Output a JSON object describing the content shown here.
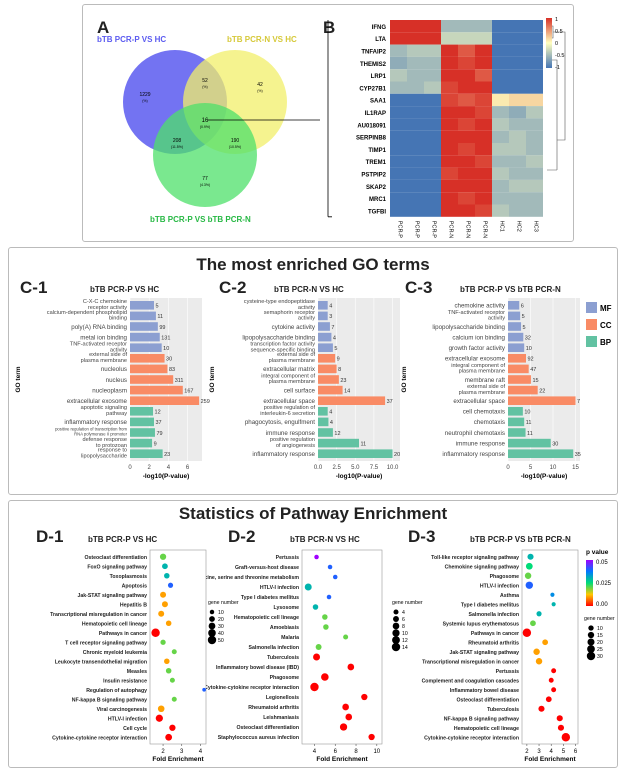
{
  "panelA": {
    "label": "A",
    "set1": "bTB PCR-P VS HC",
    "set2": "bTB PCR-N VS HC",
    "set3": "bTB PCR-P VS bTB PCR-N",
    "regions": [
      {
        "count": "1229",
        "pct": "(%)"
      },
      {
        "count": "52",
        "pct": "(%)"
      },
      {
        "count": "42",
        "pct": "(%)"
      },
      {
        "count": "16",
        "pct": "(0.9%)"
      },
      {
        "count": "208",
        "pct": "(11.5%)"
      },
      {
        "count": "190",
        "pct": "(10.5%)"
      },
      {
        "count": "77",
        "pct": "(4.3%)"
      }
    ],
    "colors": {
      "set1": "#5b5bf0",
      "set2": "#f2ef6a",
      "set3": "#4ee06a"
    }
  },
  "panelB": {
    "label": "B",
    "genes": [
      "IFNG",
      "LTA",
      "TNFAIP2",
      "THEMIS2",
      "LRP1",
      "CYP27B1",
      "SAA1",
      "IL1RAP",
      "AU018091",
      "SERPINB8",
      "TIMP1",
      "TREM1",
      "PSTPIP2",
      "SKAP2",
      "MRC1",
      "TGFBI"
    ],
    "samples": [
      "PCR-P1",
      "PCR-P2",
      "PCR-P3",
      "PCR-N1",
      "PCR-N2",
      "PCR-N3",
      "HC1",
      "HC2",
      "HC3"
    ],
    "legend_ticks": [
      "1",
      "0.5",
      "0",
      "-0.5",
      "-1"
    ],
    "values": [
      [
        1,
        1,
        1,
        -0.5,
        -0.5,
        -0.5,
        -1,
        -1,
        -1
      ],
      [
        1,
        1,
        1,
        -0.3,
        -0.3,
        -0.3,
        -1,
        -1,
        -1
      ],
      [
        -0.5,
        -0.4,
        -0.4,
        1,
        0.8,
        1,
        -1,
        -1,
        -1
      ],
      [
        -0.6,
        -0.5,
        -0.5,
        1,
        0.9,
        1,
        -1,
        -1,
        -1
      ],
      [
        -0.4,
        -0.5,
        -0.5,
        1,
        1,
        0.8,
        -1,
        -1,
        -1
      ],
      [
        -0.5,
        -0.5,
        -0.4,
        0.9,
        1,
        1,
        -1,
        -1,
        -1
      ],
      [
        -1,
        -1,
        -1,
        0.9,
        0.8,
        0.9,
        0.1,
        0.2,
        0.2
      ],
      [
        -1,
        -1,
        -1,
        1,
        1,
        0.9,
        -0.5,
        -0.6,
        -0.4
      ],
      [
        -1,
        -1,
        -1,
        1,
        0.9,
        1,
        -0.4,
        -0.5,
        -0.5
      ],
      [
        -1,
        -1,
        -1,
        1,
        1,
        1,
        -0.5,
        -0.4,
        -0.5
      ],
      [
        -1,
        -1,
        -1,
        1,
        0.9,
        1,
        -0.4,
        -0.4,
        -0.5
      ],
      [
        -1,
        -1,
        -1,
        1,
        1,
        0.9,
        -0.5,
        -0.5,
        -0.4
      ],
      [
        -1,
        -1,
        -1,
        0.9,
        1,
        1,
        -0.4,
        -0.5,
        -0.5
      ],
      [
        -1,
        -1,
        -1,
        1,
        1,
        1,
        -0.5,
        -0.4,
        -0.4
      ],
      [
        -1,
        -1,
        -1,
        1,
        0.9,
        1,
        -0.5,
        -0.5,
        -0.5
      ],
      [
        -1,
        -1,
        -1,
        1,
        1,
        0.9,
        -0.4,
        -0.5,
        -0.5
      ]
    ]
  },
  "go_section": {
    "title": "The most enriched GO terms"
  },
  "pathway_section": {
    "title": "Statistics of Pathway Enrichment"
  },
  "chart_data": [
    {
      "id": "C-1",
      "type": "bar",
      "title": "bTB PCR-P VS HC",
      "xlabel": "-log10(P-value)",
      "ylabel": "GO term",
      "xticks": [
        "0",
        "2",
        "4",
        "6"
      ],
      "xlim": [
        0,
        7.5
      ],
      "legend": [
        "MF",
        "CC",
        "BP"
      ],
      "categories": [
        "C-X-C chemokine receptor activity",
        "calcium-dependent phospholipid binding",
        "poly(A) RNA binding",
        "metal ion binding",
        "TNF-activated receptor activity",
        "external side of plasma membrane",
        "nucleolus",
        "nucleus",
        "nucleoplasm",
        "extracellular exosome",
        "apoptotic signaling pathway",
        "inflammatory response",
        "positive regulation of transcription from RNA polymerase II promoter",
        "defense response to protozoan",
        "response to lipopolysaccharide"
      ],
      "values": [
        2.5,
        2.7,
        2.9,
        3.1,
        3.3,
        3.6,
        3.9,
        4.5,
        5.5,
        7.2,
        2.4,
        2.5,
        2.6,
        2.3,
        3.4
      ],
      "labels": [
        "5",
        "11",
        "99",
        "131",
        "10",
        "30",
        "83",
        "311",
        "167",
        "259",
        "12",
        "37",
        "79",
        "9",
        "23"
      ],
      "groups": [
        "MF",
        "MF",
        "MF",
        "MF",
        "MF",
        "CC",
        "CC",
        "CC",
        "CC",
        "CC",
        "BP",
        "BP",
        "BP",
        "BP",
        "BP"
      ]
    },
    {
      "id": "C-2",
      "type": "bar",
      "title": "bTB PCR-N VS HC",
      "xlabel": "-log10(P-value)",
      "ylabel": "GO term",
      "xticks": [
        "0.0",
        "2.5",
        "5.0",
        "7.5",
        "10.0"
      ],
      "xlim": [
        0,
        11
      ],
      "categories": [
        "cysteine-type endopeptidase activity",
        "semaphorin receptor activity",
        "cytokine activity",
        "lipopolysaccharide binding",
        "transcription factor activity sequence-specific binding",
        "external side of plasma membrane",
        "extracellular matrix",
        "integral component of plasma membrane",
        "cell surface",
        "extracellular space",
        "positive regulation of interleukin-6 secretion",
        "phagocytosis, engulfment",
        "immune response",
        "positive regulation of angiogenesis",
        "inflammatory response"
      ],
      "values": [
        1.3,
        1.3,
        1.6,
        1.8,
        2.0,
        2.3,
        2.5,
        2.8,
        3.3,
        9.0,
        1.3,
        1.4,
        2.0,
        5.5,
        10.0
      ],
      "labels": [
        "4",
        "3",
        "7",
        "4",
        "5",
        "9",
        "8",
        "23",
        "14",
        "37",
        "4",
        "4",
        "12",
        "11",
        "20"
      ],
      "groups": [
        "MF",
        "MF",
        "MF",
        "MF",
        "MF",
        "CC",
        "CC",
        "CC",
        "CC",
        "CC",
        "BP",
        "BP",
        "BP",
        "BP",
        "BP"
      ]
    },
    {
      "id": "C-3",
      "type": "bar",
      "title": "bTB PCR-P VS bTB PCR-N",
      "xlabel": "-log10(P-value)",
      "ylabel": "GO term",
      "xticks": [
        "0",
        "5",
        "10",
        "15"
      ],
      "xlim": [
        0,
        16
      ],
      "categories": [
        "chemokine activity",
        "TNF-activated receptor activity",
        "lipopolysaccharide binding",
        "calcium ion binding",
        "growth factor activity",
        "extracellular exosome",
        "integral component of plasma membrane",
        "membrane raft",
        "external side of plasma membrane",
        "extracellular space",
        "cell chemotaxis",
        "chemotaxis",
        "neutrophil chemotaxis",
        "immune response",
        "inflammatory response"
      ],
      "values": [
        2.5,
        2.7,
        2.9,
        3.4,
        3.6,
        4.0,
        4.6,
        5.1,
        6.6,
        15.0,
        3.3,
        3.6,
        3.9,
        9.5,
        14.5
      ],
      "labels": [
        "6",
        "5",
        "5",
        "32",
        "10",
        "92",
        "47",
        "15",
        "22",
        "7",
        "10",
        "11",
        "11",
        "30",
        "35"
      ],
      "groups": [
        "MF",
        "MF",
        "MF",
        "MF",
        "MF",
        "CC",
        "CC",
        "CC",
        "CC",
        "CC",
        "BP",
        "BP",
        "BP",
        "BP",
        "BP"
      ]
    },
    {
      "id": "D-1",
      "type": "scatter",
      "title": "bTB PCR-P VS HC",
      "xlabel": "Fold Enrichment",
      "xticks": [
        "2",
        "3",
        "4"
      ],
      "xlim": [
        1.3,
        4.3
      ],
      "categories": [
        "Osteoclast differentiation",
        "FoxO signaling pathway",
        "Toxoplasmosis",
        "Apoptosis",
        "Jak-STAT signaling pathway",
        "Hepatitis B",
        "Transcriptional misregulation in cancer",
        "Hematopoietic cell lineage",
        "Pathways in cancer",
        "T cell receptor signaling pathway",
        "Chronic myeloid leukemia",
        "Leukocyte transendothelial migration",
        "Measles",
        "Insulin resistance",
        "Regulation of autophagy",
        "NF-kappa B signaling pathway",
        "Viral carcinogenesis",
        "HTLV-I infection",
        "Cell cycle",
        "Cytokine-cytokine receptor interaction"
      ],
      "x": [
        2.0,
        2.1,
        2.2,
        2.4,
        2.0,
        2.1,
        1.9,
        2.3,
        1.6,
        2.0,
        2.6,
        2.2,
        2.3,
        2.5,
        4.2,
        2.6,
        1.9,
        1.8,
        2.5,
        2.3
      ],
      "size": [
        25,
        20,
        18,
        15,
        22,
        22,
        22,
        18,
        50,
        16,
        14,
        18,
        18,
        14,
        6,
        14,
        28,
        35,
        25,
        30
      ],
      "p": [
        0.02,
        0.03,
        0.03,
        0.04,
        0.01,
        0.01,
        0.01,
        0.01,
        0.0,
        0.02,
        0.02,
        0.01,
        0.02,
        0.02,
        0.04,
        0.02,
        0.01,
        0.0,
        0.0,
        0.0
      ],
      "legend_title": "gene number",
      "legend_sizes": [
        "10",
        "20",
        "30",
        "40",
        "50"
      ]
    },
    {
      "id": "D-2",
      "type": "scatter",
      "title": "bTB PCR-N VS HC",
      "xlabel": "Fold Enrichment",
      "xticks": [
        "4",
        "6",
        "8",
        "10"
      ],
      "xlim": [
        2.8,
        10.5
      ],
      "categories": [
        "Pertussis",
        "Graft-versus-host disease",
        "Glycine, serine and threonine metabolism",
        "HTLV-I infection",
        "Type I diabetes mellitus",
        "Lysosome",
        "Hematopoietic cell lineage",
        "Amoebiasis",
        "Malaria",
        "Salmonella infection",
        "Tuberculosis",
        "Inflammatory bowel disease (IBD)",
        "Phagosome",
        "Cytokine-cytokine receptor interaction",
        "Legionellosis",
        "Rheumatoid arthritis",
        "Leishmaniasis",
        "Osteoclast differentiation",
        "Staphylococcus aureus infection"
      ],
      "x": [
        4.2,
        5.5,
        6.0,
        3.4,
        5.4,
        4.1,
        5.0,
        5.1,
        7.0,
        4.4,
        4.2,
        7.5,
        5.0,
        4.0,
        8.8,
        7.0,
        7.3,
        6.8,
        9.5
      ],
      "size": [
        3,
        3,
        3,
        9,
        3,
        5,
        5,
        5,
        4,
        6,
        9,
        8,
        11,
        14,
        7,
        8,
        8,
        10,
        7
      ],
      "p": [
        0.05,
        0.04,
        0.04,
        0.03,
        0.04,
        0.03,
        0.02,
        0.02,
        0.02,
        0.02,
        0.0,
        0.0,
        0.0,
        0.0,
        0.0,
        0.0,
        0.0,
        0.0,
        0.0
      ],
      "legend_title": "gene number",
      "legend_sizes": [
        "4",
        "6",
        "8",
        "10",
        "12",
        "14"
      ]
    },
    {
      "id": "D-3",
      "type": "scatter",
      "title": "bTB PCR-P VS bTB PCR-N",
      "xlabel": "Fold Enrichment",
      "xticks": [
        "2",
        "3",
        "4",
        "5",
        "6"
      ],
      "xlim": [
        1.6,
        6.2
      ],
      "categories": [
        "Toll-like receptor signaling pathway",
        "Chemokine signaling pathway",
        "Phagosome",
        "HTLV-I infection",
        "Asthma",
        "Type I diabetes mellitus",
        "Salmonella infection",
        "Systemic lupus erythematosus",
        "Pathways in cancer",
        "Rheumatoid arthritis",
        "Jak-STAT signaling pathway",
        "Transcriptional misregulation in cancer",
        "Pertussis",
        "Complement and coagulation cascades",
        "Inflammatory bowel disease",
        "Osteoclast differentiation",
        "Tuberculosis",
        "NF-kappa B signaling pathway",
        "Hematopoietic cell lineage",
        "Cytokine-cytokine receptor interaction"
      ],
      "x": [
        2.3,
        2.2,
        2.1,
        2.2,
        4.1,
        4.2,
        3.0,
        2.5,
        2.0,
        3.5,
        2.8,
        3.0,
        4.2,
        4.0,
        4.2,
        3.8,
        3.2,
        4.7,
        4.8,
        5.2
      ],
      "size": [
        14,
        18,
        16,
        22,
        5,
        5,
        9,
        12,
        30,
        12,
        16,
        16,
        8,
        8,
        8,
        12,
        14,
        14,
        14,
        30
      ],
      "p": [
        0.03,
        0.025,
        0.02,
        0.04,
        0.035,
        0.03,
        0.03,
        0.02,
        0.0,
        0.01,
        0.01,
        0.01,
        0.0,
        0.0,
        0.0,
        0.0,
        0.0,
        0.0,
        0.0,
        0.0
      ],
      "legend_title": "gene number",
      "legend_sizes": [
        "10",
        "15",
        "20",
        "25",
        "30"
      ],
      "colorbar_title": "p value",
      "colorbar_ticks": [
        "0.05",
        "0.025",
        "0.00"
      ]
    }
  ]
}
